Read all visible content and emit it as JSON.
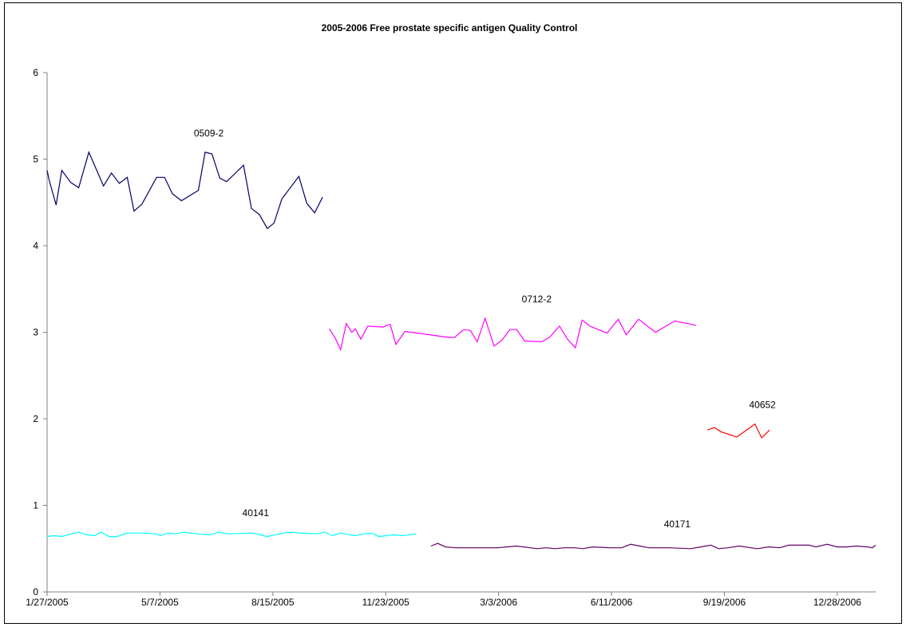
{
  "chart_data": {
    "type": "line",
    "title": "2005-2006 Free prostate specific antigen Quality Control",
    "xlabel": "",
    "ylabel": "",
    "x_range": [
      "1/27/2005",
      "1/31/2007"
    ],
    "ylim": [
      0,
      6
    ],
    "y_ticks": [
      0,
      1,
      2,
      3,
      4,
      5,
      6
    ],
    "x_tick_labels": [
      "1/27/2005",
      "5/7/2005",
      "8/15/2005",
      "11/23/2005",
      "3/3/2006",
      "6/11/2006",
      "9/19/2006",
      "12/28/2006"
    ],
    "grid": false,
    "legend": "none",
    "series": [
      {
        "name": "0509-2",
        "color": "#000066",
        "points": [
          [
            "1/27/2005",
            4.87
          ],
          [
            "1/29/2005",
            4.75
          ],
          [
            "2/4/2005",
            4.47
          ],
          [
            "2/9/2005",
            4.87
          ],
          [
            "2/17/2005",
            4.73
          ],
          [
            "2/24/2005",
            4.67
          ],
          [
            "3/5/2005",
            5.08
          ],
          [
            "3/18/2005",
            4.69
          ],
          [
            "3/25/2005",
            4.84
          ],
          [
            "4/1/2005",
            4.72
          ],
          [
            "4/8/2005",
            4.79
          ],
          [
            "4/14/2005",
            4.4
          ],
          [
            "4/21/2005",
            4.48
          ],
          [
            "5/4/2005",
            4.79
          ],
          [
            "5/11/2005",
            4.79
          ],
          [
            "5/18/2005",
            4.6
          ],
          [
            "5/26/2005",
            4.52
          ],
          [
            "6/10/2005",
            4.64
          ],
          [
            "6/16/2005",
            5.08
          ],
          [
            "6/22/2005",
            5.06
          ],
          [
            "6/29/2005",
            4.78
          ],
          [
            "7/5/2005",
            4.74
          ],
          [
            "7/20/2005",
            4.93
          ],
          [
            "7/27/2005",
            4.43
          ],
          [
            "8/3/2005",
            4.36
          ],
          [
            "8/10/2005",
            4.2
          ],
          [
            "8/16/2005",
            4.26
          ],
          [
            "8/23/2005",
            4.54
          ],
          [
            "9/7/2005",
            4.8
          ],
          [
            "9/14/2005",
            4.49
          ],
          [
            "9/21/2005",
            4.38
          ],
          [
            "9/28/2005",
            4.56
          ]
        ]
      },
      {
        "name": "0712-2",
        "color": "#ff00ff",
        "points": [
          [
            "10/4/2005",
            3.04
          ],
          [
            "10/9/2005",
            2.94
          ],
          [
            "10/14/2005",
            2.8
          ],
          [
            "10/19/2005",
            3.1
          ],
          [
            "10/24/2005",
            3.0
          ],
          [
            "10/27/2005",
            3.04
          ],
          [
            "11/1/2005",
            2.92
          ],
          [
            "11/7/2005",
            3.07
          ],
          [
            "11/21/2005",
            3.06
          ],
          [
            "11/24/2005",
            3.08
          ],
          [
            "11/27/2005",
            3.09
          ],
          [
            "12/2/2005",
            2.86
          ],
          [
            "12/10/2005",
            3.01
          ],
          [
            "1/18/2006",
            2.94
          ],
          [
            "1/23/2006",
            2.94
          ],
          [
            "1/31/2006",
            3.03
          ],
          [
            "2/6/2006",
            3.02
          ],
          [
            "2/12/2006",
            2.89
          ],
          [
            "2/19/2006",
            3.16
          ],
          [
            "2/27/2006",
            2.84
          ],
          [
            "3/6/2006",
            2.91
          ],
          [
            "3/13/2006",
            3.03
          ],
          [
            "3/19/2006",
            3.03
          ],
          [
            "3/26/2006",
            2.9
          ],
          [
            "4/10/2006",
            2.89
          ],
          [
            "4/17/2006",
            2.94
          ],
          [
            "4/26/2006",
            3.07
          ],
          [
            "5/3/2006",
            2.92
          ],
          [
            "5/10/2006",
            2.82
          ],
          [
            "5/16/2006",
            3.14
          ],
          [
            "5/23/2006",
            3.07
          ],
          [
            "6/7/2006",
            2.99
          ],
          [
            "6/17/2006",
            3.15
          ],
          [
            "6/24/2006",
            2.97
          ],
          [
            "7/5/2006",
            3.15
          ],
          [
            "7/20/2006",
            3.0
          ],
          [
            "8/6/2006",
            3.13
          ],
          [
            "8/25/2006",
            3.08
          ]
        ]
      },
      {
        "name": "40652",
        "color": "#ff0000",
        "points": [
          [
            "9/4/2006",
            1.87
          ],
          [
            "9/10/2006",
            1.9
          ],
          [
            "9/16/2006",
            1.85
          ],
          [
            "9/30/2006",
            1.79
          ],
          [
            "10/16/2006",
            1.94
          ],
          [
            "10/22/2006",
            1.78
          ],
          [
            "10/29/2006",
            1.87
          ]
        ]
      },
      {
        "name": "40141",
        "color": "#00ffff",
        "points": [
          [
            "1/27/2005",
            0.64
          ],
          [
            "2/2/2005",
            0.65
          ],
          [
            "2/9/2005",
            0.64
          ],
          [
            "2/17/2005",
            0.67
          ],
          [
            "2/24/2005",
            0.69
          ],
          [
            "3/3/2005",
            0.66
          ],
          [
            "3/10/2005",
            0.65
          ],
          [
            "3/16/2005",
            0.69
          ],
          [
            "3/23/2005",
            0.64
          ],
          [
            "3/30/2005",
            0.64
          ],
          [
            "4/8/2005",
            0.68
          ],
          [
            "4/22/2005",
            0.68
          ],
          [
            "5/4/2005",
            0.67
          ],
          [
            "5/7/2005",
            0.65
          ],
          [
            "5/14/2005",
            0.68
          ],
          [
            "5/21/2005",
            0.67
          ],
          [
            "5/28/2005",
            0.69
          ],
          [
            "6/9/2005",
            0.67
          ],
          [
            "6/21/2005",
            0.66
          ],
          [
            "6/28/2005",
            0.69
          ],
          [
            "7/6/2005",
            0.67
          ],
          [
            "7/28/2005",
            0.68
          ],
          [
            "8/10/2005",
            0.64
          ],
          [
            "8/17/2005",
            0.66
          ],
          [
            "8/24/2005",
            0.68
          ],
          [
            "9/1/2005",
            0.69
          ],
          [
            "9/9/2005",
            0.68
          ],
          [
            "9/23/2005",
            0.67
          ],
          [
            "9/30/2005",
            0.69
          ],
          [
            "10/7/2005",
            0.65
          ],
          [
            "10/14/2005",
            0.68
          ],
          [
            "10/27/2005",
            0.65
          ],
          [
            "11/3/2005",
            0.67
          ],
          [
            "11/10/2005",
            0.68
          ],
          [
            "11/17/2005",
            0.64
          ],
          [
            "11/30/2005",
            0.66
          ],
          [
            "12/7/2005",
            0.65
          ],
          [
            "12/14/2005",
            0.66
          ],
          [
            "12/20/2005",
            0.67
          ]
        ]
      },
      {
        "name": "40171",
        "color": "#660066",
        "points": [
          [
            "1/2/2006",
            0.53
          ],
          [
            "1/8/2006",
            0.56
          ],
          [
            "1/15/2006",
            0.52
          ],
          [
            "1/24/2006",
            0.51
          ],
          [
            "3/2/2006",
            0.51
          ],
          [
            "3/19/2006",
            0.53
          ],
          [
            "4/6/2006",
            0.5
          ],
          [
            "4/14/2006",
            0.51
          ],
          [
            "4/22/2006",
            0.5
          ],
          [
            "4/30/2006",
            0.51
          ],
          [
            "5/9/2006",
            0.51
          ],
          [
            "5/17/2006",
            0.5
          ],
          [
            "5/25/2006",
            0.52
          ],
          [
            "6/10/2006",
            0.51
          ],
          [
            "6/20/2006",
            0.51
          ],
          [
            "6/28/2006",
            0.55
          ],
          [
            "7/6/2006",
            0.53
          ],
          [
            "7/14/2006",
            0.51
          ],
          [
            "8/1/2006",
            0.51
          ],
          [
            "8/20/2006",
            0.5
          ],
          [
            "8/29/2006",
            0.52
          ],
          [
            "9/7/2006",
            0.54
          ],
          [
            "9/14/2006",
            0.5
          ],
          [
            "9/22/2006",
            0.51
          ],
          [
            "10/2/2006",
            0.53
          ],
          [
            "10/18/2006",
            0.5
          ],
          [
            "10/28/2006",
            0.52
          ],
          [
            "11/7/2006",
            0.51
          ],
          [
            "11/15/2006",
            0.54
          ],
          [
            "12/3/2006",
            0.54
          ],
          [
            "12/9/2006",
            0.52
          ],
          [
            "12/19/2006",
            0.55
          ],
          [
            "12/28/2006",
            0.52
          ],
          [
            "1/5/2007",
            0.52
          ],
          [
            "1/14/2007",
            0.53
          ],
          [
            "1/24/2007",
            0.52
          ],
          [
            "1/28/2007",
            0.51
          ],
          [
            "1/31/2007",
            0.54
          ]
        ]
      }
    ]
  }
}
